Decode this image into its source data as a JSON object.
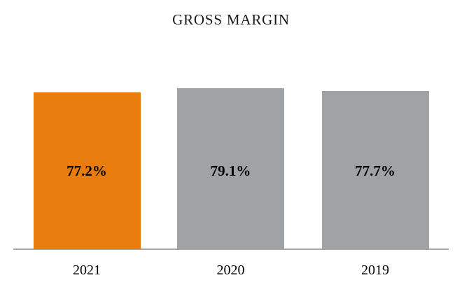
{
  "chart_data": {
    "type": "bar",
    "title": "GROSS MARGIN",
    "categories": [
      "2021",
      "2020",
      "2019"
    ],
    "values": [
      77.2,
      79.1,
      77.7
    ],
    "value_labels": [
      "77.2%",
      "79.1%",
      "77.7%"
    ],
    "bar_colors": [
      "#E87D0D",
      "#A0A3A5",
      "#A0A3A5"
    ],
    "accent_color": "#E87D0D",
    "gray_color": "#A0A3A5",
    "axis_line_color": "#A6A6A6",
    "label_color": "#000000",
    "xlabel": "",
    "ylabel": "",
    "ylim": [
      0,
      79.1
    ],
    "grid": false,
    "legend": false,
    "value_label_position": "inside-bar",
    "units": "%"
  }
}
